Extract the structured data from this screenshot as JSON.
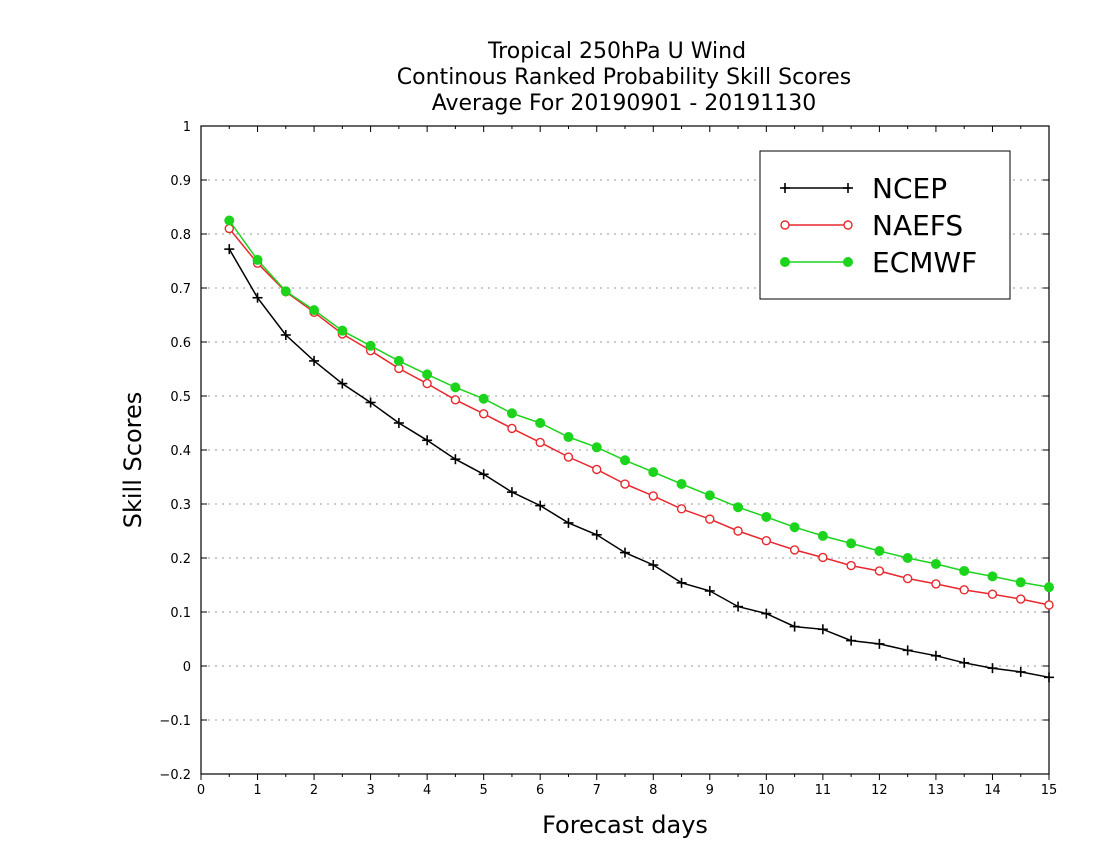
{
  "chart_data": {
    "type": "line",
    "title_lines": [
      "Tropical 250hPa U Wind",
      "Continous Ranked Probability Skill Scores",
      "Average For 20190901 - 20191130"
    ],
    "xlabel": "Forecast days",
    "ylabel": "Skill Scores",
    "xlim": [
      0,
      15
    ],
    "ylim": [
      -0.2,
      1
    ],
    "x_ticks": [
      0,
      1,
      2,
      3,
      4,
      5,
      6,
      7,
      8,
      9,
      10,
      11,
      12,
      13,
      14,
      15
    ],
    "x_tick_labels": [
      "0",
      "1",
      "2",
      "3",
      "4",
      "5",
      "6",
      "7",
      "8",
      "9",
      "10",
      "11",
      "12",
      "13",
      "14",
      "15"
    ],
    "y_ticks": [
      -0.2,
      -0.1,
      0,
      0.1,
      0.2,
      0.3,
      0.4,
      0.5,
      0.6,
      0.7,
      0.8,
      0.9,
      1
    ],
    "y_tick_labels": [
      "−0.2",
      "−0.1",
      "0",
      "0.1",
      "0.2",
      "0.3",
      "0.4",
      "0.5",
      "0.6",
      "0.7",
      "0.8",
      "0.9",
      "1"
    ],
    "grid": true,
    "legend_position": "top-right",
    "x": [
      0.5,
      1,
      1.5,
      2,
      2.5,
      3,
      3.5,
      4,
      4.5,
      5,
      5.5,
      6,
      6.5,
      7,
      7.5,
      8,
      8.5,
      9,
      9.5,
      10,
      10.5,
      11,
      11.5,
      12,
      12.5,
      13,
      13.5,
      14,
      14.5,
      15
    ],
    "series": [
      {
        "name": "NCEP",
        "color": "#000000",
        "marker": "plus",
        "values": [
          0.772,
          0.682,
          0.613,
          0.565,
          0.523,
          0.488,
          0.45,
          0.418,
          0.383,
          0.355,
          0.322,
          0.297,
          0.265,
          0.243,
          0.21,
          0.187,
          0.154,
          0.139,
          0.11,
          0.097,
          0.073,
          0.068,
          0.047,
          0.041,
          0.029,
          0.019,
          0.006,
          -0.004,
          -0.011,
          -0.021
        ]
      },
      {
        "name": "NAEFS",
        "color": "#e8282e",
        "marker": "open-circle",
        "values": [
          0.81,
          0.746,
          0.693,
          0.655,
          0.615,
          0.584,
          0.551,
          0.523,
          0.493,
          0.467,
          0.44,
          0.414,
          0.387,
          0.364,
          0.337,
          0.315,
          0.291,
          0.272,
          0.25,
          0.232,
          0.215,
          0.201,
          0.186,
          0.176,
          0.162,
          0.152,
          0.141,
          0.133,
          0.124,
          0.113
        ]
      },
      {
        "name": "ECMWF",
        "color": "#1cd41c",
        "marker": "filled-circle",
        "values": [
          0.825,
          0.752,
          0.694,
          0.659,
          0.621,
          0.593,
          0.565,
          0.54,
          0.516,
          0.495,
          0.468,
          0.45,
          0.424,
          0.405,
          0.381,
          0.359,
          0.337,
          0.316,
          0.294,
          0.276,
          0.257,
          0.241,
          0.227,
          0.213,
          0.2,
          0.189,
          0.176,
          0.166,
          0.155,
          0.146
        ]
      }
    ]
  }
}
